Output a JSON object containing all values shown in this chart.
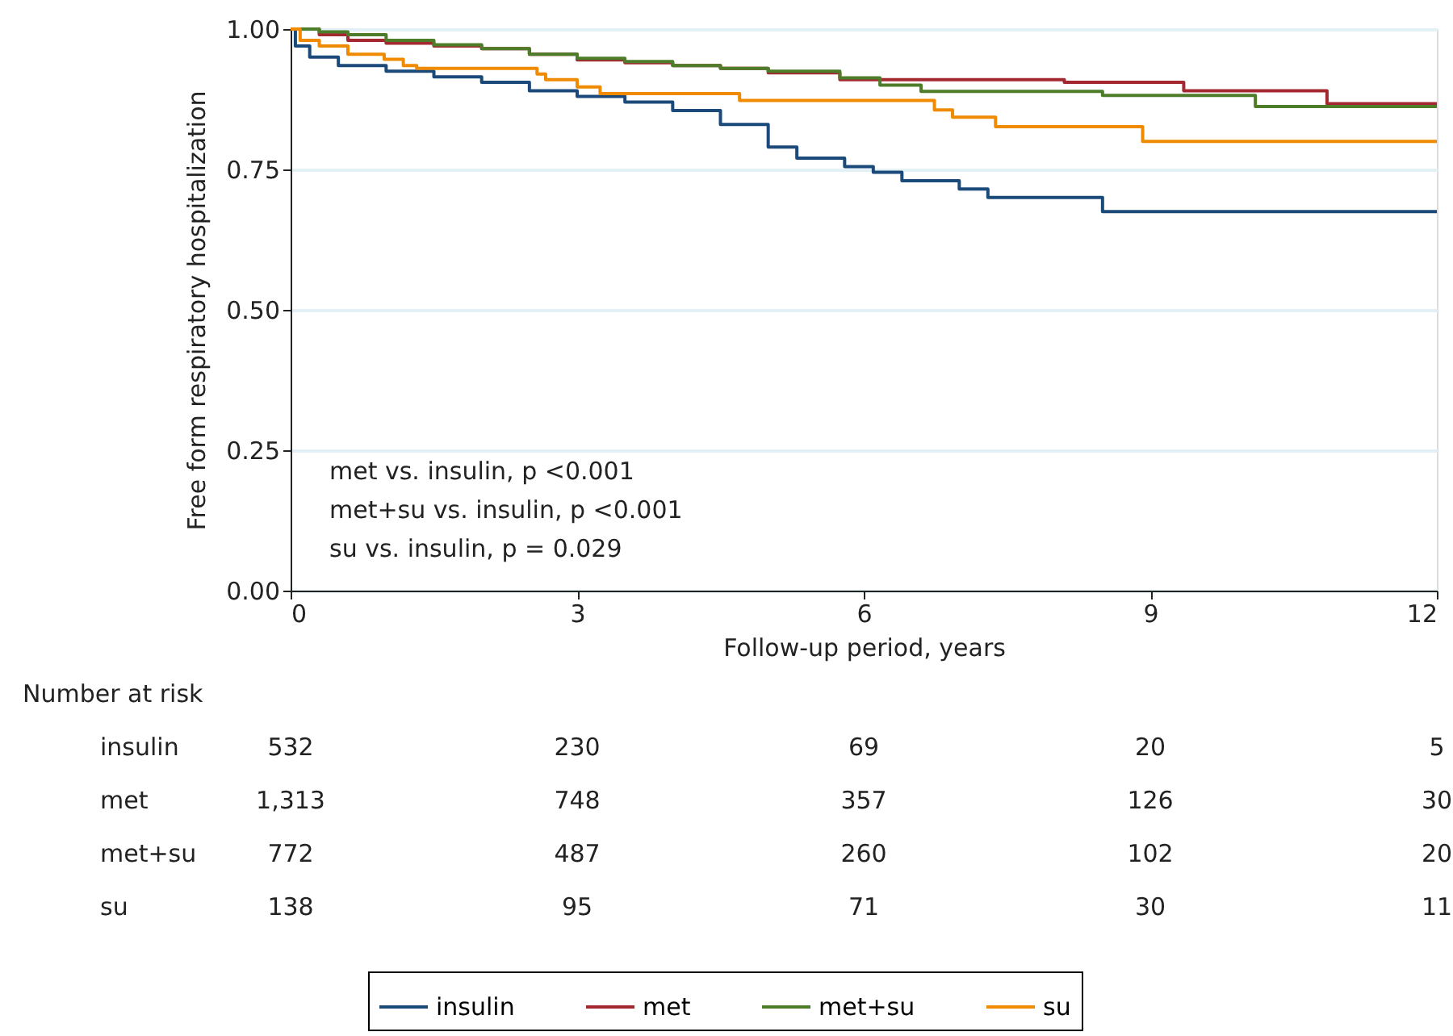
{
  "chart_data": {
    "type": "step",
    "xlabel": "Follow-up period, years",
    "ylabel": "Free form respiratory hospitalization",
    "xlim": [
      0,
      12
    ],
    "xticks": [
      0,
      3,
      6,
      9,
      12
    ],
    "ylim": [
      0,
      1
    ],
    "yticks": [
      {
        "value": 0,
        "label": "0.00"
      },
      {
        "value": 0.25,
        "label": "0.25"
      },
      {
        "value": 0.5,
        "label": "0.50"
      },
      {
        "value": 0.75,
        "label": "0.75"
      },
      {
        "value": 1,
        "label": "1.00"
      }
    ],
    "grid": "y",
    "legend": "bottom",
    "marker": "none",
    "line_style": "solid",
    "series": [
      {
        "name": "insulin",
        "color": "#1b4a7a",
        "x": [
          0,
          0.05,
          0.2,
          0.5,
          1.0,
          1.5,
          2.0,
          2.5,
          3.0,
          3.5,
          4.0,
          4.5,
          5.0,
          5.3,
          5.8,
          6.1,
          6.4,
          7.0,
          7.3,
          8.5,
          12
        ],
        "values": [
          1.0,
          0.97,
          0.95,
          0.935,
          0.925,
          0.915,
          0.905,
          0.89,
          0.88,
          0.87,
          0.855,
          0.83,
          0.79,
          0.77,
          0.755,
          0.745,
          0.73,
          0.715,
          0.7,
          0.675,
          0.675
        ]
      },
      {
        "name": "met",
        "color": "#a3282f",
        "x": [
          0,
          0.3,
          0.6,
          1.0,
          1.5,
          2.0,
          2.5,
          3.0,
          3.5,
          4.0,
          4.5,
          5.0,
          5.75,
          8.1,
          9.35,
          10.85,
          12
        ],
        "values": [
          1.0,
          0.99,
          0.98,
          0.975,
          0.97,
          0.965,
          0.955,
          0.945,
          0.94,
          0.935,
          0.93,
          0.922,
          0.91,
          0.905,
          0.89,
          0.867,
          0.867
        ]
      },
      {
        "name": "met+su",
        "color": "#4e7d2a",
        "x": [
          0,
          0.3,
          0.6,
          1.0,
          1.5,
          2.0,
          2.5,
          3.0,
          3.5,
          4.0,
          4.5,
          5.0,
          5.75,
          6.17,
          6.6,
          8.5,
          10.1,
          12
        ],
        "values": [
          1.0,
          0.995,
          0.99,
          0.98,
          0.972,
          0.965,
          0.955,
          0.948,
          0.942,
          0.935,
          0.93,
          0.925,
          0.913,
          0.9,
          0.889,
          0.882,
          0.862,
          0.862
        ]
      },
      {
        "name": "su",
        "color": "#f08a00",
        "x": [
          0,
          0.1,
          0.3,
          0.6,
          0.98,
          1.18,
          1.32,
          2.58,
          2.67,
          3.0,
          3.24,
          4.7,
          6.74,
          6.93,
          7.38,
          8.92,
          12
        ],
        "values": [
          1.0,
          0.98,
          0.97,
          0.955,
          0.946,
          0.935,
          0.93,
          0.92,
          0.91,
          0.897,
          0.885,
          0.873,
          0.856,
          0.843,
          0.826,
          0.8,
          0.8
        ]
      }
    ],
    "annotations": [
      "met vs. insulin, p <0.001",
      "met+su vs. insulin, p <0.001",
      "su vs. insulin, p = 0.029",
      "Number at risk",
      "insulin",
      "532",
      "230",
      "69",
      "20",
      "5",
      "met",
      "1,313",
      "748",
      "357",
      "126",
      "30",
      "met+su",
      "772",
      "487",
      "260",
      "102",
      "20",
      "su",
      "138",
      "95",
      "71",
      "30",
      "11"
    ]
  }
}
